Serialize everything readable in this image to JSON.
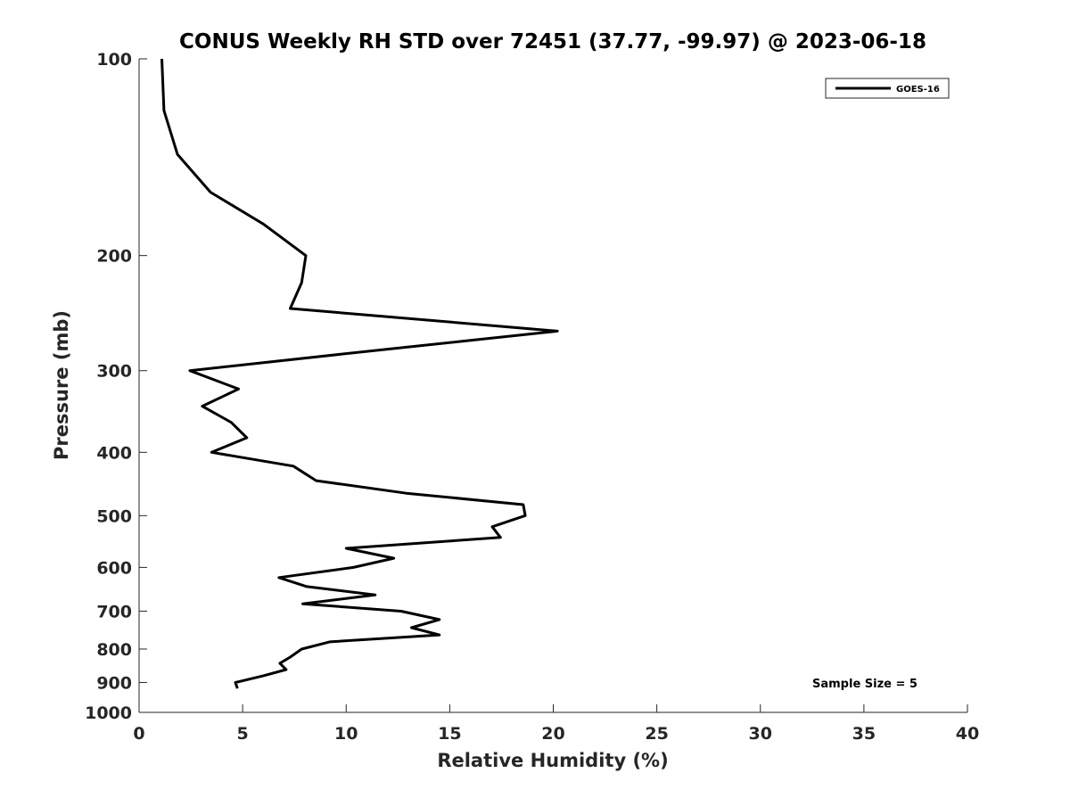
{
  "chart_data": {
    "type": "line",
    "title": "CONUS Weekly RH STD over 72451 (37.77, -99.97) @ 2023-06-18",
    "xlabel": "Relative Humidity (%)",
    "ylabel": "Pressure (mb)",
    "xlim": [
      0,
      40
    ],
    "ylim": [
      100,
      1000
    ],
    "yscale": "log",
    "yreversed": true,
    "grid": false,
    "x_ticks": [
      "0",
      "5",
      "10",
      "15",
      "20",
      "25",
      "30",
      "35",
      "40"
    ],
    "x_tick_values": [
      0,
      5,
      10,
      15,
      20,
      25,
      30,
      35,
      40
    ],
    "y_ticks": [
      "100",
      "200",
      "300",
      "400",
      "500",
      "600",
      "700",
      "800",
      "900",
      "1000"
    ],
    "y_tick_values": [
      100,
      200,
      300,
      400,
      500,
      600,
      700,
      800,
      900,
      1000
    ],
    "legend": {
      "placement": "top-right",
      "entries": [
        "GOES-16"
      ]
    },
    "annotation": "Sample Size = 5",
    "series": [
      {
        "name": "GOES-16",
        "color": "#000000",
        "x": [
          1.1,
          1.2,
          1.85,
          3.45,
          6.0,
          8.05,
          7.85,
          7.3,
          20.2,
          11.6,
          2.45,
          4.8,
          3.05,
          4.45,
          5.2,
          3.5,
          7.45,
          8.55,
          12.9,
          18.55,
          18.65,
          17.05,
          17.45,
          10.0,
          12.3,
          10.35,
          6.75,
          8.1,
          11.4,
          7.9,
          12.65,
          14.5,
          13.15,
          14.5,
          9.2,
          7.85,
          7.3,
          6.8,
          7.1,
          6.0,
          4.65,
          4.75
        ],
        "y": [
          100,
          120,
          140,
          160,
          179,
          200,
          220,
          241,
          261,
          279,
          300,
          320,
          340,
          360,
          380,
          400,
          420,
          442,
          462,
          481,
          500,
          520,
          540,
          561,
          581,
          600,
          622,
          642,
          661,
          682,
          700,
          721,
          742,
          761,
          780,
          800,
          823,
          841,
          860,
          879,
          900,
          919
        ]
      }
    ]
  }
}
